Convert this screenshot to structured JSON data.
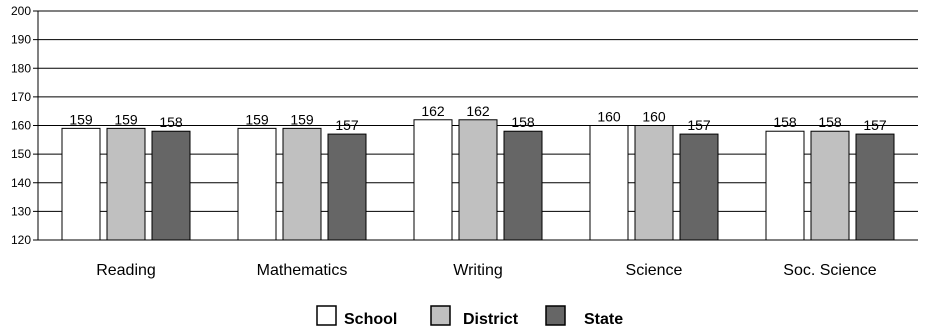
{
  "chart_data": {
    "type": "bar",
    "categories": [
      "Reading",
      "Mathematics",
      "Writing",
      "Science",
      "Soc. Science"
    ],
    "series": [
      {
        "name": "School",
        "values": [
          159,
          159,
          162,
          160,
          158
        ],
        "color": "#ffffff"
      },
      {
        "name": "District",
        "values": [
          159,
          159,
          162,
          160,
          158
        ],
        "color": "#c0c0c0"
      },
      {
        "name": "State",
        "values": [
          158,
          157,
          158,
          157,
          157
        ],
        "color": "#666666"
      }
    ],
    "ylim": [
      120,
      200
    ],
    "yticks": [
      120,
      130,
      140,
      150,
      160,
      170,
      180,
      190,
      200
    ],
    "grid": true,
    "legend_position": "bottom-center",
    "title": "",
    "xlabel": "",
    "ylabel": ""
  }
}
